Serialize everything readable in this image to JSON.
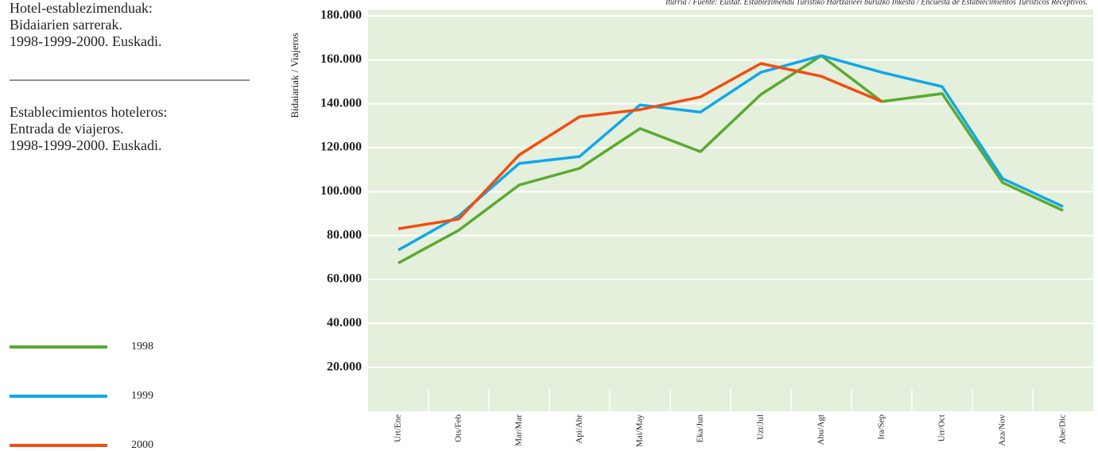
{
  "chart_data": {
    "type": "line",
    "title": [
      "Hotel-establezimenduak:",
      "Bidaiarien sarrerak.",
      "1998-1999-2000. Euskadi."
    ],
    "subtitle": [
      "Establecimientos hoteleros:",
      "Entrada de viajeros.",
      "1998-1999-2000. Euskadi."
    ],
    "source": "Iturria / Fuente: Eustat. Establezimendu Turistiko Hartzaileei buruzko Inkesta / Encuesta de Establecimientos Turísticos Receptivos.",
    "y_label": "Bidaiariak / Viajeros",
    "categories": [
      "Urt/Ene",
      "Ots/Feb",
      "Mar/Mar",
      "Api/Abr",
      "Mai/May",
      "Eka/Jun",
      "Uzt/Jul",
      "Abu/Agt",
      "Ira/Sep",
      "Urr/Oct",
      "Aza/Nov",
      "Abe/Dic"
    ],
    "series": [
      {
        "name": "1998",
        "color": "#5aaa2f",
        "values": [
          67500,
          82400,
          103000,
          110600,
          128700,
          118200,
          144200,
          161900,
          141000,
          144600,
          104100,
          91400
        ]
      },
      {
        "name": "1999",
        "color": "#12a7e8",
        "values": [
          73400,
          88900,
          112800,
          116000,
          139500,
          136200,
          154300,
          161900,
          154300,
          147800,
          105900,
          93200
        ]
      },
      {
        "name": "2000",
        "color": "#f04e12",
        "values": [
          83100,
          87500,
          116700,
          134100,
          137300,
          143100,
          158300,
          152500,
          141000,
          null,
          null,
          null
        ]
      }
    ],
    "ylim": [
      0,
      180000
    ],
    "yticks": [
      {
        "value": 20000,
        "label": "20.000"
      },
      {
        "value": 40000,
        "label": "40.000"
      },
      {
        "value": 60000,
        "label": "60.000"
      },
      {
        "value": 80000,
        "label": "80.000"
      },
      {
        "value": 100000,
        "label": "100.000"
      },
      {
        "value": 120000,
        "label": "120.000"
      },
      {
        "value": 140000,
        "label": "140.000"
      },
      {
        "value": 160000,
        "label": "160.000"
      },
      {
        "value": 180000,
        "label": "180.000"
      }
    ],
    "grid": true,
    "background": "#e4efdc"
  }
}
